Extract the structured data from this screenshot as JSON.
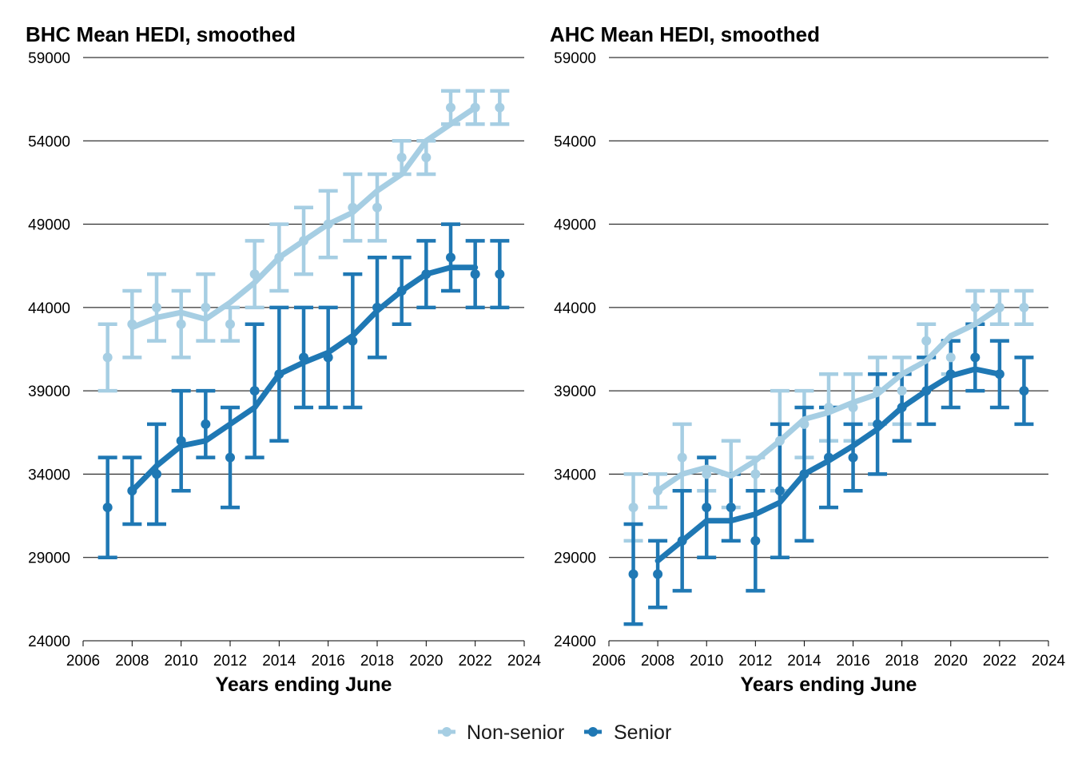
{
  "legend": {
    "position": "bottom",
    "items": [
      {
        "label": "Non-senior",
        "color": "#a6cee3"
      },
      {
        "label": "Senior",
        "color": "#1f78b4"
      }
    ]
  },
  "chart_data": [
    {
      "type": "line",
      "title": "BHC Mean HEDI, smoothed",
      "xlabel": "Years ending June",
      "ylabel": "",
      "xlim": [
        2006,
        2024
      ],
      "ylim": [
        24000,
        59000
      ],
      "xticks": [
        2006,
        2008,
        2010,
        2012,
        2014,
        2016,
        2018,
        2020,
        2022,
        2024
      ],
      "yticks": [
        24000,
        29000,
        34000,
        39000,
        44000,
        49000,
        54000,
        59000
      ],
      "grid": "horizontal",
      "series": [
        {
          "name": "Non-senior",
          "color": "#a6cee3",
          "points": [
            {
              "x": 2007,
              "y": 41000,
              "lo": 39000,
              "hi": 43000
            },
            {
              "x": 2008,
              "y": 43000,
              "lo": 41000,
              "hi": 45000
            },
            {
              "x": 2009,
              "y": 44000,
              "lo": 42000,
              "hi": 46000
            },
            {
              "x": 2010,
              "y": 43000,
              "lo": 41000,
              "hi": 45000
            },
            {
              "x": 2011,
              "y": 44000,
              "lo": 42000,
              "hi": 46000
            },
            {
              "x": 2012,
              "y": 43000,
              "lo": 42000,
              "hi": 44000
            },
            {
              "x": 2013,
              "y": 46000,
              "lo": 44000,
              "hi": 48000
            },
            {
              "x": 2014,
              "y": 47000,
              "lo": 45000,
              "hi": 49000
            },
            {
              "x": 2015,
              "y": 48000,
              "lo": 46000,
              "hi": 50000
            },
            {
              "x": 2016,
              "y": 49000,
              "lo": 47000,
              "hi": 51000
            },
            {
              "x": 2017,
              "y": 50000,
              "lo": 48000,
              "hi": 52000
            },
            {
              "x": 2018,
              "y": 50000,
              "lo": 48000,
              "hi": 52000
            },
            {
              "x": 2019,
              "y": 53000,
              "lo": 52000,
              "hi": 54000
            },
            {
              "x": 2020,
              "y": 53000,
              "lo": 52000,
              "hi": 54000
            },
            {
              "x": 2021,
              "y": 56000,
              "lo": 55000,
              "hi": 57000
            },
            {
              "x": 2022,
              "y": 56000,
              "lo": 55000,
              "hi": 57000
            },
            {
              "x": 2023,
              "y": 56000,
              "lo": 55000,
              "hi": 57000
            }
          ],
          "smooth": [
            {
              "x": 2008,
              "y": 42800
            },
            {
              "x": 2009,
              "y": 43400
            },
            {
              "x": 2010,
              "y": 43700
            },
            {
              "x": 2011,
              "y": 43300
            },
            {
              "x": 2012,
              "y": 44300
            },
            {
              "x": 2013,
              "y": 45500
            },
            {
              "x": 2014,
              "y": 47000
            },
            {
              "x": 2015,
              "y": 48000
            },
            {
              "x": 2016,
              "y": 49000
            },
            {
              "x": 2017,
              "y": 49700
            },
            {
              "x": 2018,
              "y": 51000
            },
            {
              "x": 2019,
              "y": 52000
            },
            {
              "x": 2020,
              "y": 54000
            },
            {
              "x": 2021,
              "y": 55000
            },
            {
              "x": 2022,
              "y": 56000
            }
          ]
        },
        {
          "name": "Senior",
          "color": "#1f78b4",
          "points": [
            {
              "x": 2007,
              "y": 32000,
              "lo": 29000,
              "hi": 35000
            },
            {
              "x": 2008,
              "y": 33000,
              "lo": 31000,
              "hi": 35000
            },
            {
              "x": 2009,
              "y": 34000,
              "lo": 31000,
              "hi": 37000
            },
            {
              "x": 2010,
              "y": 36000,
              "lo": 33000,
              "hi": 39000
            },
            {
              "x": 2011,
              "y": 37000,
              "lo": 35000,
              "hi": 39000
            },
            {
              "x": 2012,
              "y": 35000,
              "lo": 32000,
              "hi": 38000
            },
            {
              "x": 2013,
              "y": 39000,
              "lo": 35000,
              "hi": 43000
            },
            {
              "x": 2014,
              "y": 40000,
              "lo": 36000,
              "hi": 44000
            },
            {
              "x": 2015,
              "y": 41000,
              "lo": 38000,
              "hi": 44000
            },
            {
              "x": 2016,
              "y": 41000,
              "lo": 38000,
              "hi": 44000
            },
            {
              "x": 2017,
              "y": 42000,
              "lo": 38000,
              "hi": 46000
            },
            {
              "x": 2018,
              "y": 44000,
              "lo": 41000,
              "hi": 47000
            },
            {
              "x": 2019,
              "y": 45000,
              "lo": 43000,
              "hi": 47000
            },
            {
              "x": 2020,
              "y": 46000,
              "lo": 44000,
              "hi": 48000
            },
            {
              "x": 2021,
              "y": 47000,
              "lo": 45000,
              "hi": 49000
            },
            {
              "x": 2022,
              "y": 46000,
              "lo": 44000,
              "hi": 48000
            },
            {
              "x": 2023,
              "y": 46000,
              "lo": 44000,
              "hi": 48000
            }
          ],
          "smooth": [
            {
              "x": 2008,
              "y": 33000
            },
            {
              "x": 2009,
              "y": 34500
            },
            {
              "x": 2010,
              "y": 35700
            },
            {
              "x": 2011,
              "y": 36000
            },
            {
              "x": 2012,
              "y": 37000
            },
            {
              "x": 2013,
              "y": 38000
            },
            {
              "x": 2014,
              "y": 40000
            },
            {
              "x": 2015,
              "y": 40700
            },
            {
              "x": 2016,
              "y": 41300
            },
            {
              "x": 2017,
              "y": 42300
            },
            {
              "x": 2018,
              "y": 43800
            },
            {
              "x": 2019,
              "y": 45000
            },
            {
              "x": 2020,
              "y": 46000
            },
            {
              "x": 2021,
              "y": 46400
            },
            {
              "x": 2022,
              "y": 46400
            }
          ]
        }
      ]
    },
    {
      "type": "line",
      "title": "AHC Mean HEDI, smoothed",
      "xlabel": "Years ending June",
      "ylabel": "",
      "xlim": [
        2006,
        2024
      ],
      "ylim": [
        24000,
        59000
      ],
      "xticks": [
        2006,
        2008,
        2010,
        2012,
        2014,
        2016,
        2018,
        2020,
        2022,
        2024
      ],
      "yticks": [
        24000,
        29000,
        34000,
        39000,
        44000,
        49000,
        54000,
        59000
      ],
      "grid": "horizontal",
      "series": [
        {
          "name": "Non-senior",
          "color": "#a6cee3",
          "points": [
            {
              "x": 2007,
              "y": 32000,
              "lo": 30000,
              "hi": 34000
            },
            {
              "x": 2008,
              "y": 33000,
              "lo": 32000,
              "hi": 34000
            },
            {
              "x": 2009,
              "y": 35000,
              "lo": 33000,
              "hi": 37000
            },
            {
              "x": 2010,
              "y": 34000,
              "lo": 33000,
              "hi": 35000
            },
            {
              "x": 2011,
              "y": 32000,
              "lo": 32000,
              "hi": 36000
            },
            {
              "x": 2012,
              "y": 34000,
              "lo": 33000,
              "hi": 35000
            },
            {
              "x": 2013,
              "y": 36000,
              "lo": 33000,
              "hi": 39000
            },
            {
              "x": 2014,
              "y": 37000,
              "lo": 35000,
              "hi": 39000
            },
            {
              "x": 2015,
              "y": 38000,
              "lo": 36000,
              "hi": 40000
            },
            {
              "x": 2016,
              "y": 38000,
              "lo": 36000,
              "hi": 40000
            },
            {
              "x": 2017,
              "y": 39000,
              "lo": 37000,
              "hi": 41000
            },
            {
              "x": 2018,
              "y": 39000,
              "lo": 37000,
              "hi": 41000
            },
            {
              "x": 2019,
              "y": 42000,
              "lo": 41000,
              "hi": 43000
            },
            {
              "x": 2020,
              "y": 41000,
              "lo": 40000,
              "hi": 42000
            },
            {
              "x": 2021,
              "y": 44000,
              "lo": 43000,
              "hi": 45000
            },
            {
              "x": 2022,
              "y": 44000,
              "lo": 43000,
              "hi": 45000
            },
            {
              "x": 2023,
              "y": 44000,
              "lo": 43000,
              "hi": 45000
            }
          ],
          "smooth": [
            {
              "x": 2008,
              "y": 33000
            },
            {
              "x": 2009,
              "y": 34000
            },
            {
              "x": 2010,
              "y": 34400
            },
            {
              "x": 2011,
              "y": 33900
            },
            {
              "x": 2012,
              "y": 34800
            },
            {
              "x": 2013,
              "y": 36000
            },
            {
              "x": 2014,
              "y": 37300
            },
            {
              "x": 2015,
              "y": 37700
            },
            {
              "x": 2016,
              "y": 38300
            },
            {
              "x": 2017,
              "y": 38800
            },
            {
              "x": 2018,
              "y": 40000
            },
            {
              "x": 2019,
              "y": 40800
            },
            {
              "x": 2020,
              "y": 42300
            },
            {
              "x": 2021,
              "y": 43000
            },
            {
              "x": 2022,
              "y": 44000
            }
          ]
        },
        {
          "name": "Senior",
          "color": "#1f78b4",
          "points": [
            {
              "x": 2007,
              "y": 28000,
              "lo": 25000,
              "hi": 31000
            },
            {
              "x": 2008,
              "y": 28000,
              "lo": 26000,
              "hi": 30000
            },
            {
              "x": 2009,
              "y": 30000,
              "lo": 27000,
              "hi": 33000
            },
            {
              "x": 2010,
              "y": 32000,
              "lo": 29000,
              "hi": 35000
            },
            {
              "x": 2011,
              "y": 32000,
              "lo": 30000,
              "hi": 34000
            },
            {
              "x": 2012,
              "y": 30000,
              "lo": 27000,
              "hi": 33000
            },
            {
              "x": 2013,
              "y": 33000,
              "lo": 29000,
              "hi": 37000
            },
            {
              "x": 2014,
              "y": 34000,
              "lo": 30000,
              "hi": 38000
            },
            {
              "x": 2015,
              "y": 35000,
              "lo": 32000,
              "hi": 38000
            },
            {
              "x": 2016,
              "y": 35000,
              "lo": 33000,
              "hi": 37000
            },
            {
              "x": 2017,
              "y": 37000,
              "lo": 34000,
              "hi": 40000
            },
            {
              "x": 2018,
              "y": 38000,
              "lo": 36000,
              "hi": 40000
            },
            {
              "x": 2019,
              "y": 39000,
              "lo": 37000,
              "hi": 41000
            },
            {
              "x": 2020,
              "y": 40000,
              "lo": 38000,
              "hi": 42000
            },
            {
              "x": 2021,
              "y": 41000,
              "lo": 39000,
              "hi": 43000
            },
            {
              "x": 2022,
              "y": 40000,
              "lo": 38000,
              "hi": 42000
            },
            {
              "x": 2023,
              "y": 39000,
              "lo": 37000,
              "hi": 41000
            }
          ],
          "smooth": [
            {
              "x": 2008,
              "y": 28800
            },
            {
              "x": 2009,
              "y": 30000
            },
            {
              "x": 2010,
              "y": 31200
            },
            {
              "x": 2011,
              "y": 31200
            },
            {
              "x": 2012,
              "y": 31600
            },
            {
              "x": 2013,
              "y": 32300
            },
            {
              "x": 2014,
              "y": 34000
            },
            {
              "x": 2015,
              "y": 34800
            },
            {
              "x": 2016,
              "y": 35700
            },
            {
              "x": 2017,
              "y": 36700
            },
            {
              "x": 2018,
              "y": 38000
            },
            {
              "x": 2019,
              "y": 39000
            },
            {
              "x": 2020,
              "y": 39900
            },
            {
              "x": 2021,
              "y": 40300
            },
            {
              "x": 2022,
              "y": 40000
            }
          ]
        }
      ]
    }
  ]
}
